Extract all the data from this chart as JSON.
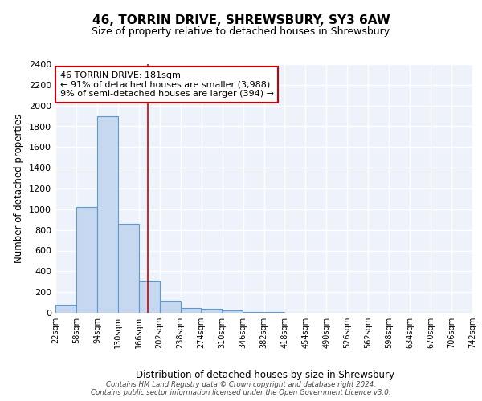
{
  "title1": "46, TORRIN DRIVE, SHREWSBURY, SY3 6AW",
  "title2": "Size of property relative to detached houses in Shrewsbury",
  "xlabel": "Distribution of detached houses by size in Shrewsbury",
  "ylabel": "Number of detached properties",
  "bin_edges": [
    22,
    58,
    94,
    130,
    166,
    202,
    238,
    274,
    310,
    346,
    382,
    418,
    454,
    490,
    526,
    562,
    598,
    634,
    670,
    706,
    742
  ],
  "bar_heights": [
    80,
    1020,
    1900,
    860,
    310,
    120,
    50,
    40,
    20,
    10,
    5,
    0,
    0,
    0,
    0,
    0,
    0,
    0,
    0,
    0
  ],
  "bar_color": "#c5d8f0",
  "bar_edge_color": "#5b9bd5",
  "property_line_x": 181,
  "property_line_color": "#cc0000",
  "ylim": [
    0,
    2400
  ],
  "yticks": [
    0,
    200,
    400,
    600,
    800,
    1000,
    1200,
    1400,
    1600,
    1800,
    2000,
    2200,
    2400
  ],
  "annotation_text": "46 TORRIN DRIVE: 181sqm\n← 91% of detached houses are smaller (3,988)\n9% of semi-detached houses are larger (394) →",
  "annotation_box_color": "#ffffff",
  "annotation_box_edge": "#cc0000",
  "footer_text": "Contains HM Land Registry data © Crown copyright and database right 2024.\nContains public sector information licensed under the Open Government Licence v3.0.",
  "background_color": "#eef2fb",
  "grid_color": "#ffffff",
  "fig_bg": "#ffffff"
}
